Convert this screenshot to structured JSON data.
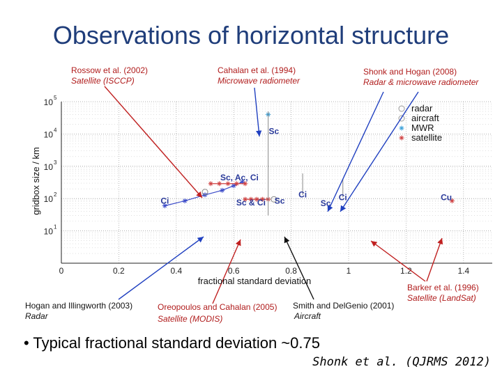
{
  "slide": {
    "title": "Observations of horizontal structure",
    "bullet_marker": "•",
    "bullet_text": "Typical fractional standard deviation ~0.75",
    "citation": "Shonk et al. (QJRMS 2012)"
  },
  "references": [
    {
      "line1": "Rossow et al. (2002)",
      "line2": "Satellite (ISCCP)",
      "color": "#b01c1c"
    },
    {
      "line1": "Cahalan et al. (1994)",
      "line2": "Microwave radiometer",
      "color": "#b01c1c"
    },
    {
      "line1": "Shonk and Hogan (2008)",
      "line2": "Radar & microwave radiometer",
      "color": "#b01c1c"
    },
    {
      "line1": "Hogan and Illingworth (2003)",
      "line2": "Radar",
      "color": "#111111"
    },
    {
      "line1": "Oreopoulos and Cahalan (2005)",
      "line2": "Satellite (MODIS)",
      "color": "#b01c1c"
    },
    {
      "line1": "Smith and DelGenio (2001)",
      "line2": "Aircraft",
      "color": "#111111"
    },
    {
      "line1": "Barker et al. (1996)",
      "line2": "Satellite (LandSat)",
      "color": "#b01c1c"
    }
  ],
  "chart_data": {
    "type": "scatter",
    "xlabel": "fractional standard deviation",
    "ylabel": "gridbox size / km",
    "xlim": [
      0,
      1.5
    ],
    "ylim": [
      1,
      100000
    ],
    "y_scale": "log",
    "x_ticks": [
      "0",
      "0.2",
      "0.4",
      "0.6",
      "0.8",
      "1",
      "1.2",
      "1.4"
    ],
    "y_tick_bases": [
      "10",
      "10",
      "10",
      "10",
      "10"
    ],
    "y_tick_exps": [
      "1",
      "2",
      "3",
      "4",
      "5"
    ],
    "grid": true,
    "legend_position": "top-right",
    "legend": [
      {
        "label": "radar",
        "marker": "circle",
        "color": "#9a9a9a"
      },
      {
        "label": "aircraft",
        "marker": "circle",
        "color": "#9a9a9a"
      },
      {
        "label": "MWR",
        "marker": "asterisk",
        "color": "#3aa0d8"
      },
      {
        "label": "satellite",
        "marker": "asterisk",
        "color": "#d04040"
      }
    ],
    "annotations": [
      {
        "text": "Sc",
        "x": 0.74,
        "y": 10000,
        "color": "#2a3a9a"
      },
      {
        "text": "Sc, Ac, Ci",
        "x": 0.62,
        "y": 370,
        "color": "#2a3a9a"
      },
      {
        "text": "Ci",
        "x": 0.36,
        "y": 70,
        "color": "#2a3a9a"
      },
      {
        "text": "Sc & Ci",
        "x": 0.66,
        "y": 62,
        "color": "#2a3a9a"
      },
      {
        "text": "Sc",
        "x": 0.76,
        "y": 70,
        "color": "#2a3a9a"
      },
      {
        "text": "Ci",
        "x": 0.84,
        "y": 110,
        "color": "#2a3a9a"
      },
      {
        "text": "Ci",
        "x": 0.98,
        "y": 90,
        "color": "#2a3a9a"
      },
      {
        "text": "Sc",
        "x": 0.92,
        "y": 58,
        "color": "#2a3a9a"
      },
      {
        "text": "Cu",
        "x": 1.34,
        "y": 90,
        "color": "#2a3a9a"
      }
    ],
    "series": [
      {
        "name": "Ci",
        "color": "#3a4ac8",
        "x": [
          0.36,
          0.43,
          0.5,
          0.56,
          0.6,
          0.63
        ],
        "y": [
          60,
          85,
          130,
          180,
          250,
          330
        ]
      },
      {
        "name": "Sc, Ac, Ci",
        "color": "#d04040",
        "x": [
          0.52,
          0.55,
          0.58,
          0.61,
          0.64
        ],
        "y": [
          290,
          290,
          290,
          290,
          290
        ]
      },
      {
        "name": "Sc & Ci",
        "color": "#d04040",
        "x": [
          0.64,
          0.66,
          0.68,
          0.7,
          0.72
        ],
        "y": [
          95,
          95,
          95,
          95,
          95
        ]
      },
      {
        "name": "Sc",
        "color": "#3aa0d8",
        "x": [
          0.72
        ],
        "y": [
          40000
        ]
      },
      {
        "name": "Cu",
        "color": "#d04040",
        "x": [
          1.36
        ],
        "y": [
          85
        ]
      }
    ]
  }
}
